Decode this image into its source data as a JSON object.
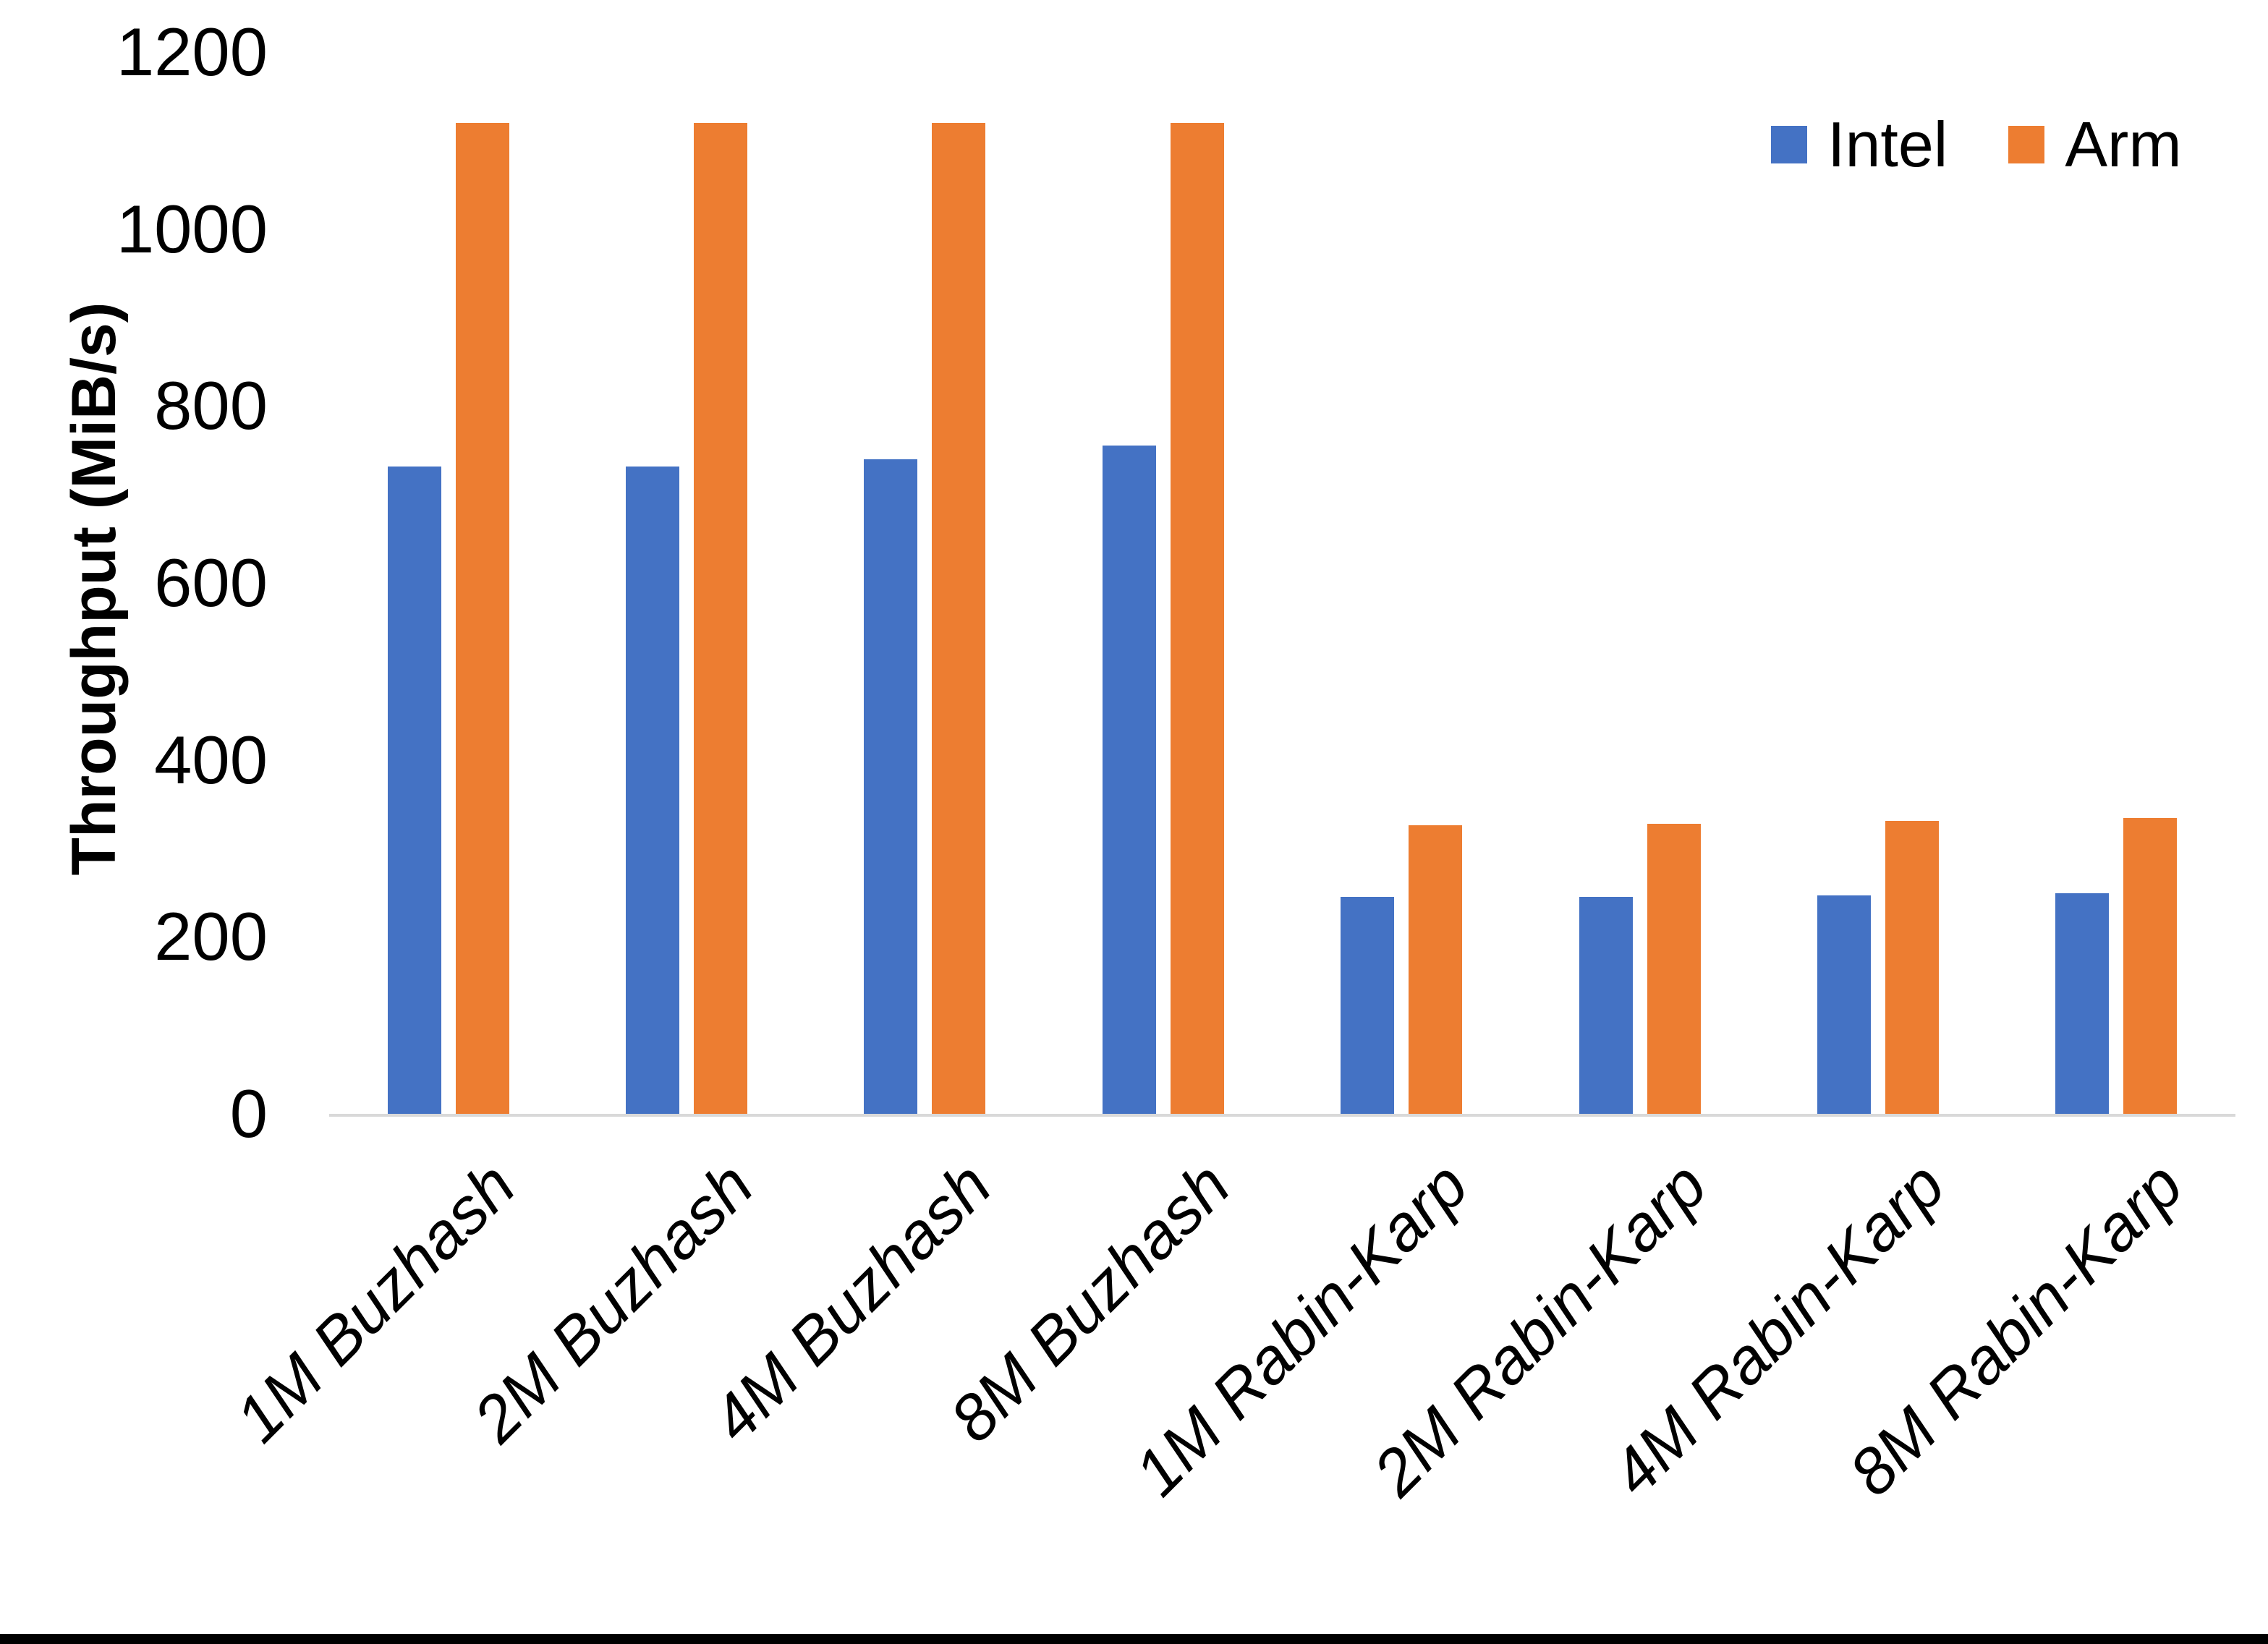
{
  "chart_data": {
    "type": "bar",
    "title": "",
    "y_axis": {
      "title": "Throughput (MiB/s)",
      "min": 0,
      "max": 1200,
      "tick_step": 200,
      "tick_labels": [
        "0",
        "200",
        "400",
        "600",
        "800",
        "1000",
        "1200"
      ]
    },
    "categories": [
      "1M Buzhash",
      "2M Buzhash",
      "4M Buzhash",
      "8M Buzhash",
      "1M Rabin-Karp",
      "2M Rabin-Karp",
      "4M Rabin-Karp",
      "8M Rabin-Karp"
    ],
    "series": [
      {
        "name": "Intel",
        "color": "#4472C4",
        "values": [
          732,
          732,
          740,
          755,
          245,
          245,
          247,
          249
        ]
      },
      {
        "name": "Arm",
        "color": "#ED7D31",
        "values": [
          1120,
          1120,
          1120,
          1120,
          326,
          328,
          331,
          334
        ]
      }
    ],
    "legend_position": "top-right",
    "grid": false,
    "axis_line_color": "#D9D9D9",
    "text_color": "#000000",
    "background_color": "#FFFFFF",
    "page_border_color": "#000000"
  }
}
